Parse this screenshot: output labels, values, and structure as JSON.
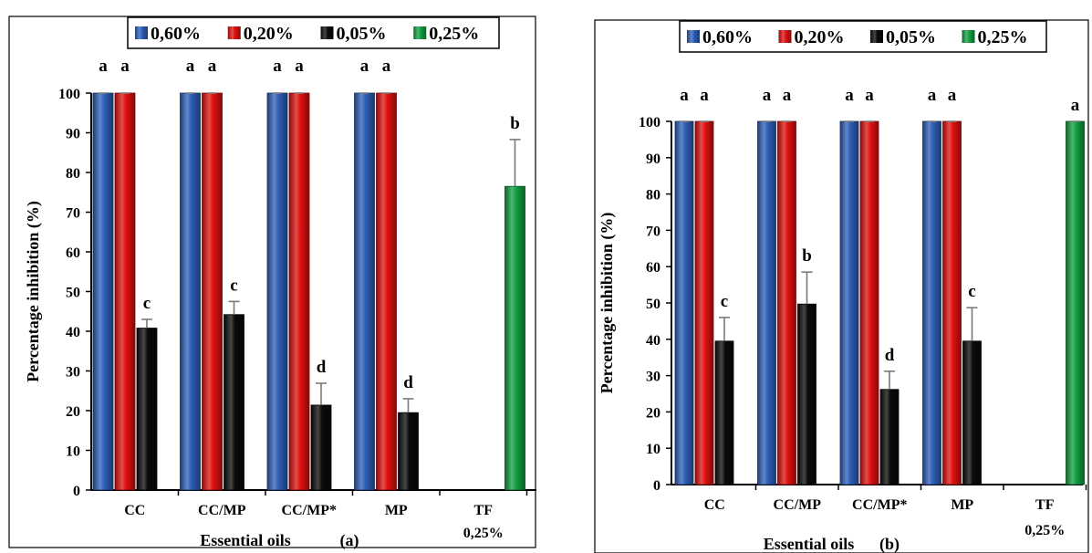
{
  "colors": {
    "0,60%": "#2e5fb8",
    "0,20%": "#e01010",
    "0,05%": "#0a0a0a",
    "0,25%": "#12a040"
  },
  "chart_data": [
    {
      "type": "bar",
      "panel_label": "(a)",
      "xlabel": "Essential oils",
      "ylabel": "Percentage inhibition (%)",
      "ylim": [
        0,
        100
      ],
      "yticks": [
        0,
        10,
        20,
        30,
        40,
        50,
        60,
        70,
        80,
        90,
        100
      ],
      "legend": [
        "0,60%",
        "0,20%",
        "0,05%",
        "0,25%"
      ],
      "legend_position": "top",
      "categories": [
        {
          "label": "CC",
          "label2": ""
        },
        {
          "label": "CC/MP",
          "label2": ""
        },
        {
          "label": "CC/MP*",
          "label2": ""
        },
        {
          "label": "MP",
          "label2": ""
        },
        {
          "label": "TF",
          "label2": "0,25%"
        }
      ],
      "series": [
        {
          "name": "0,60%",
          "values": [
            100,
            100,
            100,
            100,
            null
          ],
          "errors": [
            0,
            0,
            0,
            0,
            null
          ],
          "letters": [
            "a",
            "a",
            "a",
            "a",
            ""
          ]
        },
        {
          "name": "0,20%",
          "values": [
            100,
            100,
            100,
            100,
            null
          ],
          "errors": [
            0,
            0,
            0,
            0,
            null
          ],
          "letters": [
            "a",
            "a",
            "a",
            "a",
            ""
          ]
        },
        {
          "name": "0,05%",
          "values": [
            40.8,
            44.2,
            21.4,
            19.5,
            null
          ],
          "errors": [
            2.2,
            3.3,
            5.5,
            3.5,
            null
          ],
          "letters": [
            "c",
            "c",
            "d",
            "d",
            ""
          ]
        },
        {
          "name": "0,25%",
          "values": [
            null,
            null,
            null,
            null,
            76.5
          ],
          "errors": [
            null,
            null,
            null,
            null,
            11.8
          ],
          "letters": [
            "",
            "",
            "",
            "",
            "b"
          ]
        }
      ]
    },
    {
      "type": "bar",
      "panel_label": "(b)",
      "xlabel": "Essential oils",
      "ylabel": "Percentage inhibition (%)",
      "ylim": [
        0,
        100
      ],
      "yticks": [
        0,
        10,
        20,
        30,
        40,
        50,
        60,
        70,
        80,
        90,
        100
      ],
      "legend": [
        "0,60%",
        "0,20%",
        "0,05%",
        "0,25%"
      ],
      "legend_position": "top",
      "categories": [
        {
          "label": "CC",
          "label2": ""
        },
        {
          "label": "CC/MP",
          "label2": ""
        },
        {
          "label": "CC/MP*",
          "label2": ""
        },
        {
          "label": "MP",
          "label2": ""
        },
        {
          "label": "TF",
          "label2": "0,25%"
        }
      ],
      "series": [
        {
          "name": "0,60%",
          "values": [
            100,
            100,
            100,
            100,
            null
          ],
          "errors": [
            0,
            0,
            0,
            0,
            null
          ],
          "letters": [
            "a",
            "a",
            "a",
            "a",
            ""
          ]
        },
        {
          "name": "0,20%",
          "values": [
            100,
            100,
            100,
            100,
            null
          ],
          "errors": [
            0,
            0,
            0,
            0,
            null
          ],
          "letters": [
            "a",
            "a",
            "a",
            "a",
            ""
          ]
        },
        {
          "name": "0,05%",
          "values": [
            39.5,
            49.7,
            26.2,
            39.5,
            null
          ],
          "errors": [
            6.5,
            8.8,
            5.0,
            9.2,
            null
          ],
          "letters": [
            "c",
            "b",
            "d",
            "c",
            ""
          ]
        },
        {
          "name": "0,25%",
          "values": [
            null,
            null,
            null,
            null,
            100
          ],
          "errors": [
            null,
            null,
            null,
            null,
            0
          ],
          "letters": [
            "",
            "",
            "",
            "",
            "a"
          ]
        }
      ]
    }
  ]
}
